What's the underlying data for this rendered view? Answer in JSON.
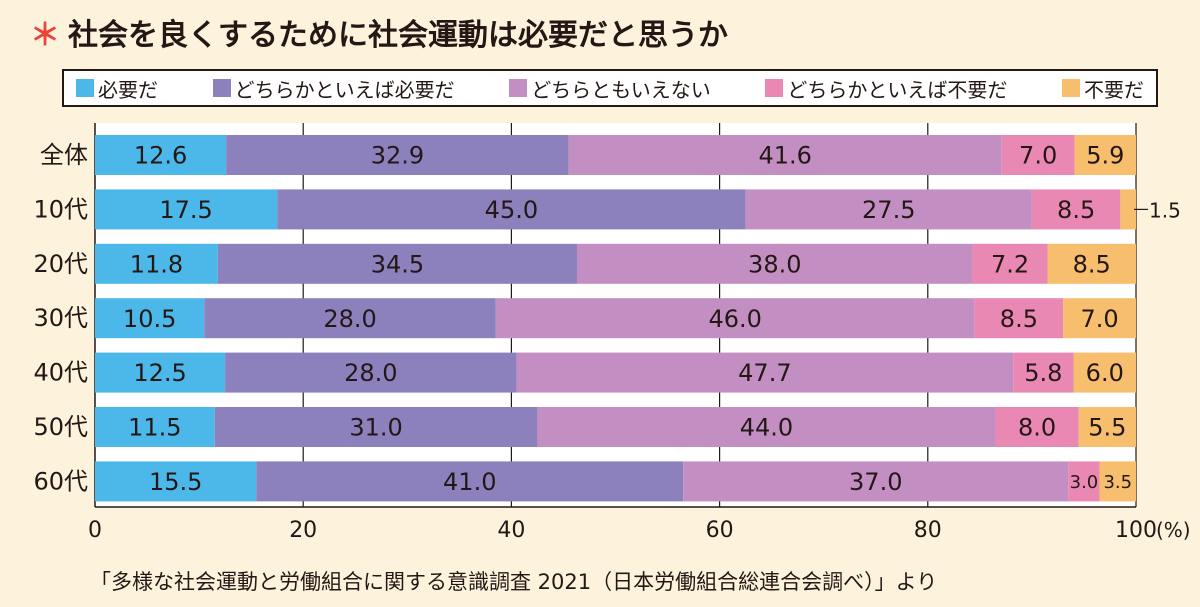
{
  "title": "社会を良くするために社会運動は必要だと思うか",
  "title_mark": "＊",
  "source": "「多様な社会運動と労働組合に関する意識調査 2021（日本労働組合総連合会調べ）」より",
  "chart_data": {
    "type": "bar",
    "orientation": "horizontal",
    "stacked": true,
    "categories": [
      "全体",
      "10代",
      "20代",
      "30代",
      "40代",
      "50代",
      "60代"
    ],
    "series": [
      {
        "name": "必要だ",
        "color": "#4cb8ea",
        "values": [
          12.6,
          17.5,
          11.8,
          10.5,
          12.5,
          11.5,
          15.5
        ]
      },
      {
        "name": "どちらかといえば必要だ",
        "color": "#8c80bd",
        "values": [
          32.9,
          45.0,
          34.5,
          28.0,
          28.0,
          31.0,
          41.0
        ]
      },
      {
        "name": "どちらともいえない",
        "color": "#c38fc2",
        "values": [
          41.6,
          27.5,
          38.0,
          46.0,
          47.7,
          44.0,
          37.0
        ]
      },
      {
        "name": "どちらかといえば不要だ",
        "color": "#ea88b4",
        "values": [
          7.0,
          8.5,
          7.2,
          8.5,
          5.8,
          8.0,
          3.0
        ]
      },
      {
        "name": "不要だ",
        "color": "#f7be6d",
        "values": [
          5.9,
          1.5,
          8.5,
          7.0,
          6.0,
          5.5,
          3.5
        ]
      }
    ],
    "xlim": [
      0,
      100
    ],
    "xticks": [
      "0",
      "20",
      "40",
      "60",
      "80",
      "100"
    ],
    "xunit": "(%)",
    "grid": true,
    "legend": "top"
  }
}
